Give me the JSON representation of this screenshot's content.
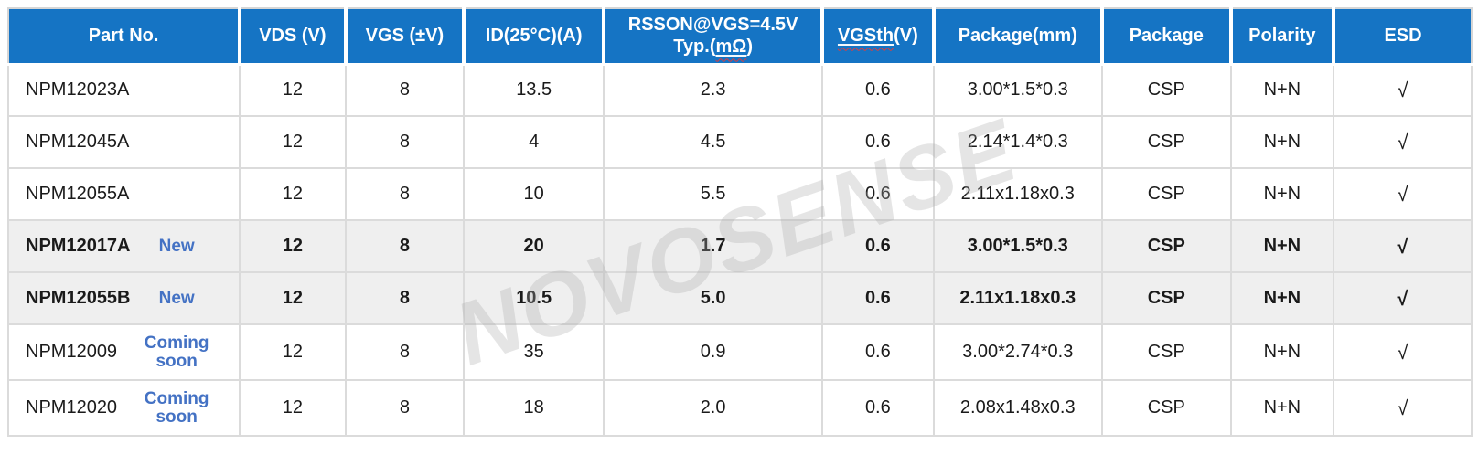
{
  "colors": {
    "header_bg": "#1574C4",
    "header_text": "#FFFFFF",
    "badge_blue": "#4472C4",
    "highlight_row_bg": "#EFEFEF",
    "grid_border": "#DBDBDB",
    "body_text": "#1A1A1A",
    "squiggle_red": "#E03C3C",
    "watermark_gray": "#E0E0E0"
  },
  "header": {
    "part_no": "Part No.",
    "vds": "VDS (V)",
    "vgs": "VGS (±V)",
    "id": "ID(25°C)(A)",
    "rsson_line1": "RSSON@VGS=4.5V",
    "rsson_line2_pre": "Typ.(",
    "rsson_unit": "mΩ",
    "rsson_line2_post": ")",
    "vgsth_word": "VGSth",
    "vgsth_rest": "(V)",
    "package_mm": "Package(mm)",
    "package": "Package",
    "polarity": "Polarity",
    "esd": "ESD"
  },
  "rows": [
    {
      "part": "NPM12023A",
      "tag": "",
      "vds": "12",
      "vgs": "8",
      "id": "13.5",
      "rsson": "2.3",
      "vgsth": "0.6",
      "package_mm": "3.00*1.5*0.3",
      "package": "CSP",
      "polarity": "N+N",
      "esd": "√"
    },
    {
      "part": "NPM12045A",
      "tag": "",
      "vds": "12",
      "vgs": "8",
      "id": "4",
      "rsson": "4.5",
      "vgsth": "0.6",
      "package_mm": "2.14*1.4*0.3",
      "package": "CSP",
      "polarity": "N+N",
      "esd": "√"
    },
    {
      "part": "NPM12055A",
      "tag": "",
      "vds": "12",
      "vgs": "8",
      "id": "10",
      "rsson": "5.5",
      "vgsth": "0.6",
      "package_mm": "2.11x1.18x0.3",
      "package": "CSP",
      "polarity": "N+N",
      "esd": "√"
    },
    {
      "part": "NPM12017A",
      "tag": "New",
      "vds": "12",
      "vgs": "8",
      "id": "20",
      "rsson": "1.7",
      "vgsth": "0.6",
      "package_mm": "3.00*1.5*0.3",
      "package": "CSP",
      "polarity": "N+N",
      "esd": "√"
    },
    {
      "part": "NPM12055B",
      "tag": "New",
      "vds": "12",
      "vgs": "8",
      "id": "10.5",
      "rsson": "5.0",
      "vgsth": "0.6",
      "package_mm": "2.11x1.18x0.3",
      "package": "CSP",
      "polarity": "N+N",
      "esd": "√"
    },
    {
      "part": "NPM12009",
      "tag": "Coming soon",
      "vds": "12",
      "vgs": "8",
      "id": "35",
      "rsson": "0.9",
      "vgsth": "0.6",
      "package_mm": "3.00*2.74*0.3",
      "package": "CSP",
      "polarity": "N+N",
      "esd": "√"
    },
    {
      "part": "NPM12020",
      "tag": "Coming soon",
      "vds": "12",
      "vgs": "8",
      "id": "18",
      "rsson": "2.0",
      "vgsth": "0.6",
      "package_mm": "2.08x1.48x0.3",
      "package": "CSP",
      "polarity": "N+N",
      "esd": "√"
    }
  ],
  "watermark": {
    "text": "NOVOSENSE"
  }
}
